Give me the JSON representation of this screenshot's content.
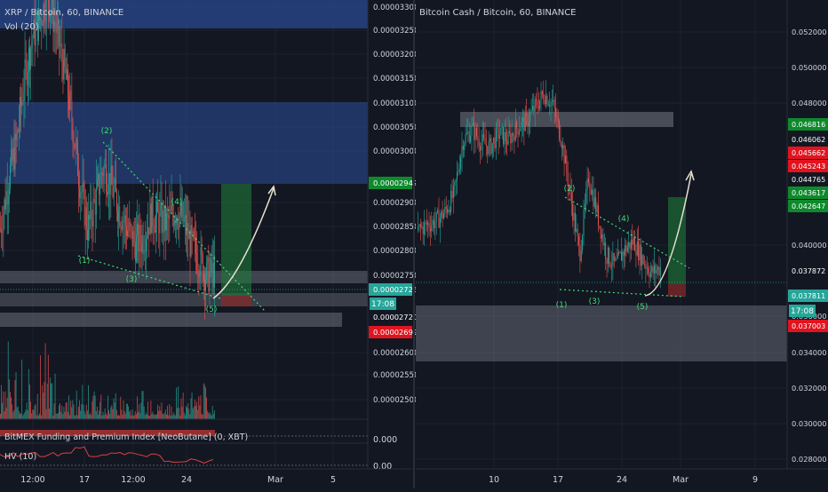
{
  "left_panel": {
    "title": "XRP / Bitcoin, 60, BINANCE",
    "vol_label": "Vol (20)",
    "funding_label": "BitMEX Funding and Premium Index [NeoButane] (0, XBT)",
    "hv_label": "HV (10)",
    "time_badge": "17:08",
    "y_ticks": [
      "0.00003300",
      "0.00003250",
      "0.00003200",
      "0.00003150",
      "0.00003100",
      "0.00003050",
      "0.00003000",
      "0.00002900",
      "0.00002850",
      "0.00002800",
      "0.00002750",
      "0.00002600",
      "0.00002550",
      "0.00002500"
    ],
    "price_tags": [
      {
        "value": "0.00002942",
        "color": "#0e8a2d"
      },
      {
        "value": "0.00002726",
        "color": "#26a69a"
      },
      {
        "value": "0.00002720",
        "color": "#131722"
      },
      {
        "value": "0.00002699",
        "color": "#e0141f"
      }
    ],
    "funding_tick": "0.000",
    "hv_tick": "0.00",
    "x_ticks": [
      "12:00",
      "17",
      "12:00",
      "24",
      "Mar",
      "5"
    ],
    "wave_labels": [
      "(1)",
      "(2)",
      "(3)",
      "(4)",
      "(5)"
    ]
  },
  "right_panel": {
    "title": "Bitcoin Cash / Bitcoin, 60, BINANCE",
    "time_badge": "17:08",
    "y_ticks": [
      "0.052000",
      "0.050000",
      "0.048000",
      "0.040000",
      "0.036000",
      "0.034000",
      "0.032000",
      "0.030000",
      "0.028000"
    ],
    "price_tags": [
      {
        "value": "0.046816",
        "color": "#0e8a2d"
      },
      {
        "value": "0.046062",
        "color": "#131722"
      },
      {
        "value": "0.045662",
        "color": "#e0141f"
      },
      {
        "value": "0.045243",
        "color": "#e0141f"
      },
      {
        "value": "0.044765",
        "color": "#131722"
      },
      {
        "value": "0.043617",
        "color": "#0e8a2d"
      },
      {
        "value": "0.042647",
        "color": "#0e8a2d"
      },
      {
        "value": "0.037872",
        "color": "#131722"
      },
      {
        "value": "0.037811",
        "color": "#26a69a"
      },
      {
        "value": "0.037003",
        "color": "#e0141f"
      }
    ],
    "x_ticks": [
      "10",
      "17",
      "24",
      "Mar",
      "9"
    ],
    "wave_labels": [
      "(1)",
      "(2)",
      "(3)",
      "(4)",
      "(5)"
    ]
  },
  "chart_data": [
    {
      "type": "candlestick",
      "title": "XRP / Bitcoin, 60, BINANCE",
      "ylim": [
        2.45e-05,
        3.3e-05
      ],
      "close_path": [
        2.82e-05,
        2.92e-05,
        3e-05,
        3.13e-05,
        3.22e-05,
        3.26e-05,
        3.31e-05,
        3.24e-05,
        3.16e-05,
        3.05e-05,
        2.92e-05,
        2.82e-05,
        2.88e-05,
        2.95e-05,
        2.91e-05,
        2.86e-05,
        2.82e-05,
        2.79e-05,
        2.8e-05,
        2.85e-05,
        2.84e-05,
        2.83e-05,
        2.86e-05,
        2.84e-05,
        2.79e-05,
        2.76e-05,
        2.72e-05,
        2.73e-05
      ],
      "annotations": {
        "waves": [
          {
            "label": "(1)",
            "price": 2.79e-05
          },
          {
            "label": "(2)",
            "price": 2.93e-05
          },
          {
            "label": "(3)",
            "price": 2.76e-05
          },
          {
            "label": "(4)",
            "price": 2.87e-05
          },
          {
            "label": "(5)",
            "price": 2.72e-05
          }
        ],
        "last_price": 2.726e-05,
        "target": 2.942e-05
      }
    },
    {
      "type": "candlestick",
      "title": "Bitcoin Cash / Bitcoin, 60, BINANCE",
      "ylim": [
        0.027,
        0.053
      ],
      "close_path": [
        0.0402,
        0.0405,
        0.0407,
        0.0412,
        0.0422,
        0.0452,
        0.0458,
        0.0451,
        0.0448,
        0.0456,
        0.0452,
        0.0459,
        0.0462,
        0.047,
        0.0478,
        0.0472,
        0.0452,
        0.042,
        0.0388,
        0.0432,
        0.041,
        0.0388,
        0.0382,
        0.0391,
        0.0396,
        0.0386,
        0.0378,
        0.0381
      ],
      "annotations": {
        "waves": [
          {
            "label": "(1)",
            "price": 0.0378
          },
          {
            "label": "(2)",
            "price": 0.0432
          },
          {
            "label": "(3)",
            "price": 0.038
          },
          {
            "label": "(4)",
            "price": 0.0402
          },
          {
            "label": "(5)",
            "price": 0.0377
          }
        ],
        "last_price": 0.037811,
        "target": 0.046816
      }
    }
  ]
}
